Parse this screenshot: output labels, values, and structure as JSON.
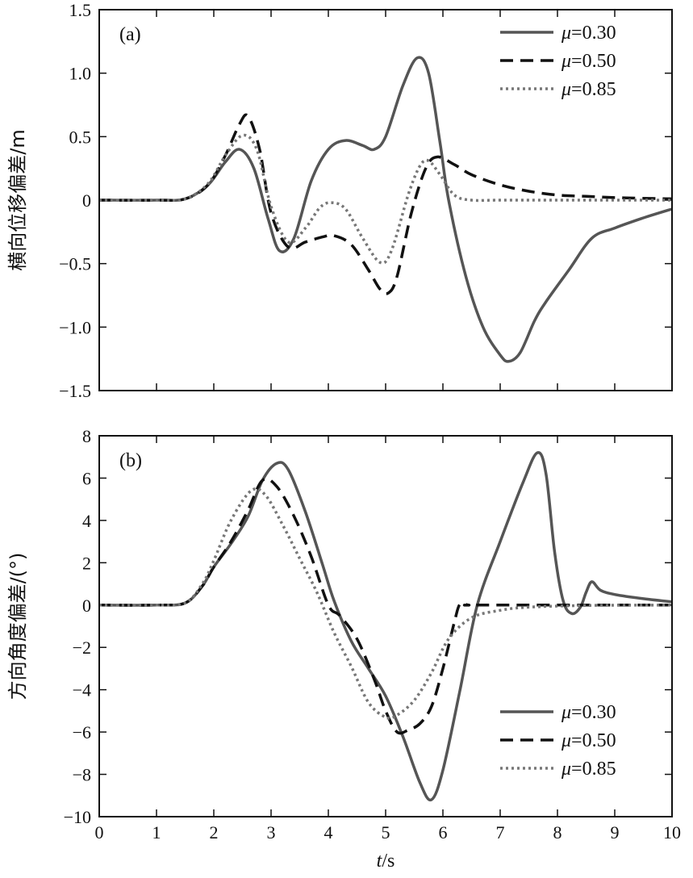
{
  "chart_data": [
    {
      "type": "line",
      "panel_label": "(a)",
      "xlabel_italic": "t",
      "xlabel_unit": "/s",
      "ylabel": "横向位移偏差/m",
      "xlim": [
        0,
        10
      ],
      "ylim": [
        -1.5,
        1.5
      ],
      "xticks": [
        "0",
        "1",
        "2",
        "3",
        "4",
        "5",
        "6",
        "7",
        "8",
        "9",
        "10"
      ],
      "yticks": [
        {
          "v": 1.5,
          "t": "1.5"
        },
        {
          "v": 1.0,
          "t": "1.0"
        },
        {
          "v": 0.5,
          "t": "0.5"
        },
        {
          "v": 0,
          "t": "0"
        },
        {
          "v": -0.5,
          "t": "−0.5"
        },
        {
          "v": -1.0,
          "t": "−1.0"
        },
        {
          "v": -1.5,
          "t": "−1.5"
        }
      ],
      "legend_position": "top-right",
      "series": [
        {
          "name": "μ=0.30",
          "mu": "μ",
          "val": "=0.30",
          "style": "solid",
          "color": "#555555",
          "x": [
            0,
            1,
            1.5,
            1.9,
            2.2,
            2.45,
            2.7,
            2.95,
            3.15,
            3.4,
            3.7,
            4.0,
            4.3,
            4.6,
            4.8,
            5.0,
            5.3,
            5.55,
            5.75,
            5.95,
            6.1,
            6.4,
            6.7,
            7.0,
            7.15,
            7.35,
            7.6,
            7.8,
            8.2,
            8.6,
            9.0,
            9.5,
            10
          ],
          "y": [
            0,
            0,
            0.01,
            0.12,
            0.3,
            0.4,
            0.25,
            -0.15,
            -0.4,
            -0.3,
            0.15,
            0.4,
            0.47,
            0.43,
            0.4,
            0.5,
            0.9,
            1.12,
            1.0,
            0.45,
            0,
            -0.6,
            -1.0,
            -1.22,
            -1.27,
            -1.2,
            -0.95,
            -0.8,
            -0.55,
            -0.3,
            -0.22,
            -0.14,
            -0.07
          ]
        },
        {
          "name": "μ=0.50",
          "mu": "μ",
          "val": "=0.50",
          "style": "dashed",
          "color": "#111111",
          "x": [
            0,
            1,
            1.5,
            1.9,
            2.2,
            2.45,
            2.6,
            2.8,
            3.0,
            3.3,
            3.6,
            3.9,
            4.1,
            4.4,
            4.7,
            4.9,
            5.05,
            5.2,
            5.45,
            5.7,
            5.9,
            6.2,
            6.5,
            7.0,
            7.5,
            8.0,
            8.5,
            9.0,
            10
          ],
          "y": [
            0,
            0,
            0.01,
            0.12,
            0.35,
            0.6,
            0.66,
            0.4,
            -0.1,
            -0.37,
            -0.33,
            -0.29,
            -0.28,
            -0.35,
            -0.55,
            -0.7,
            -0.73,
            -0.6,
            -0.1,
            0.25,
            0.34,
            0.28,
            0.2,
            0.12,
            0.07,
            0.04,
            0.03,
            0.02,
            0.01
          ]
        },
        {
          "name": "μ=0.85",
          "mu": "μ",
          "val": "=0.85",
          "style": "dotted",
          "color": "#777777",
          "x": [
            0,
            1,
            1.5,
            1.9,
            2.2,
            2.5,
            2.75,
            3.0,
            3.3,
            3.6,
            3.85,
            4.05,
            4.3,
            4.6,
            4.9,
            5.1,
            5.4,
            5.6,
            5.75,
            5.95,
            6.2,
            6.5,
            7.0,
            8.0,
            10
          ],
          "y": [
            0,
            0,
            0.01,
            0.13,
            0.35,
            0.51,
            0.4,
            -0.05,
            -0.33,
            -0.22,
            -0.06,
            -0.02,
            -0.07,
            -0.3,
            -0.49,
            -0.4,
            0.05,
            0.27,
            0.31,
            0.2,
            0.04,
            0.0,
            0.0,
            0.0,
            0.0
          ]
        }
      ]
    },
    {
      "type": "line",
      "panel_label": "(b)",
      "xlabel_italic": "t",
      "xlabel_unit": "/s",
      "ylabel": "方向角度偏差/(°)",
      "xlim": [
        0,
        10
      ],
      "ylim": [
        -10,
        8
      ],
      "xticks": [
        "0",
        "1",
        "2",
        "3",
        "4",
        "5",
        "6",
        "7",
        "8",
        "9",
        "10"
      ],
      "yticks": [
        {
          "v": 8,
          "t": "8"
        },
        {
          "v": 6,
          "t": "6"
        },
        {
          "v": 4,
          "t": "4"
        },
        {
          "v": 2,
          "t": "2"
        },
        {
          "v": 0,
          "t": "0"
        },
        {
          "v": -2,
          "t": "−2"
        },
        {
          "v": -4,
          "t": "−4"
        },
        {
          "v": -6,
          "t": "−6"
        },
        {
          "v": -8,
          "t": "−8"
        },
        {
          "v": -10,
          "t": "−10"
        }
      ],
      "legend_position": "bottom-right",
      "series": [
        {
          "name": "μ=0.30",
          "mu": "μ",
          "val": "=0.30",
          "style": "solid",
          "color": "#555555",
          "x": [
            0,
            1,
            1.5,
            1.8,
            2.0,
            2.3,
            2.6,
            2.85,
            3.1,
            3.3,
            3.6,
            3.9,
            4.1,
            4.4,
            4.7,
            5.0,
            5.3,
            5.6,
            5.8,
            6.0,
            6.3,
            6.6,
            7.0,
            7.4,
            7.65,
            7.8,
            7.95,
            8.1,
            8.25,
            8.4,
            8.5,
            8.6,
            8.75,
            9.0,
            9.5,
            10
          ],
          "y": [
            0,
            0,
            0.1,
            0.9,
            1.8,
            2.9,
            4.2,
            5.9,
            6.7,
            6.4,
            4.4,
            1.9,
            0.2,
            -1.7,
            -3.0,
            -4.3,
            -6.2,
            -8.4,
            -9.2,
            -7.8,
            -4.0,
            0,
            3.0,
            5.8,
            7.2,
            6.2,
            2.5,
            0.2,
            -0.4,
            -0.1,
            0.6,
            1.1,
            0.7,
            0.5,
            0.3,
            0.15
          ]
        },
        {
          "name": "μ=0.50",
          "mu": "μ",
          "val": "=0.50",
          "style": "dashed",
          "color": "#111111",
          "x": [
            0,
            1,
            1.5,
            1.8,
            2.0,
            2.3,
            2.6,
            2.85,
            3.1,
            3.4,
            3.7,
            4.0,
            4.2,
            4.5,
            4.8,
            5.0,
            5.2,
            5.4,
            5.6,
            5.8,
            6.0,
            6.2,
            6.3,
            6.45,
            6.7,
            10
          ],
          "y": [
            0,
            0,
            0.1,
            0.9,
            1.8,
            3.0,
            4.5,
            5.9,
            5.6,
            4.2,
            2.3,
            0.0,
            -0.5,
            -1.6,
            -3.5,
            -5.0,
            -6.0,
            -5.9,
            -5.6,
            -4.8,
            -3.0,
            -0.8,
            0.05,
            0,
            0,
            0
          ]
        },
        {
          "name": "μ=0.85",
          "mu": "μ",
          "val": "=0.85",
          "style": "dotted",
          "color": "#777777",
          "x": [
            0,
            1,
            1.5,
            1.8,
            2.0,
            2.3,
            2.65,
            2.9,
            3.2,
            3.5,
            3.8,
            4.1,
            4.4,
            4.7,
            5.0,
            5.2,
            5.5,
            5.8,
            6.1,
            6.5,
            7.0,
            7.5,
            8.5,
            10
          ],
          "y": [
            0,
            0,
            0.1,
            1.0,
            2.1,
            4.0,
            5.4,
            5.2,
            3.8,
            2.2,
            0.6,
            -1.3,
            -2.9,
            -4.6,
            -5.3,
            -5.2,
            -4.5,
            -3.2,
            -1.6,
            -0.6,
            -0.25,
            -0.1,
            -0.02,
            0
          ]
        }
      ]
    }
  ]
}
